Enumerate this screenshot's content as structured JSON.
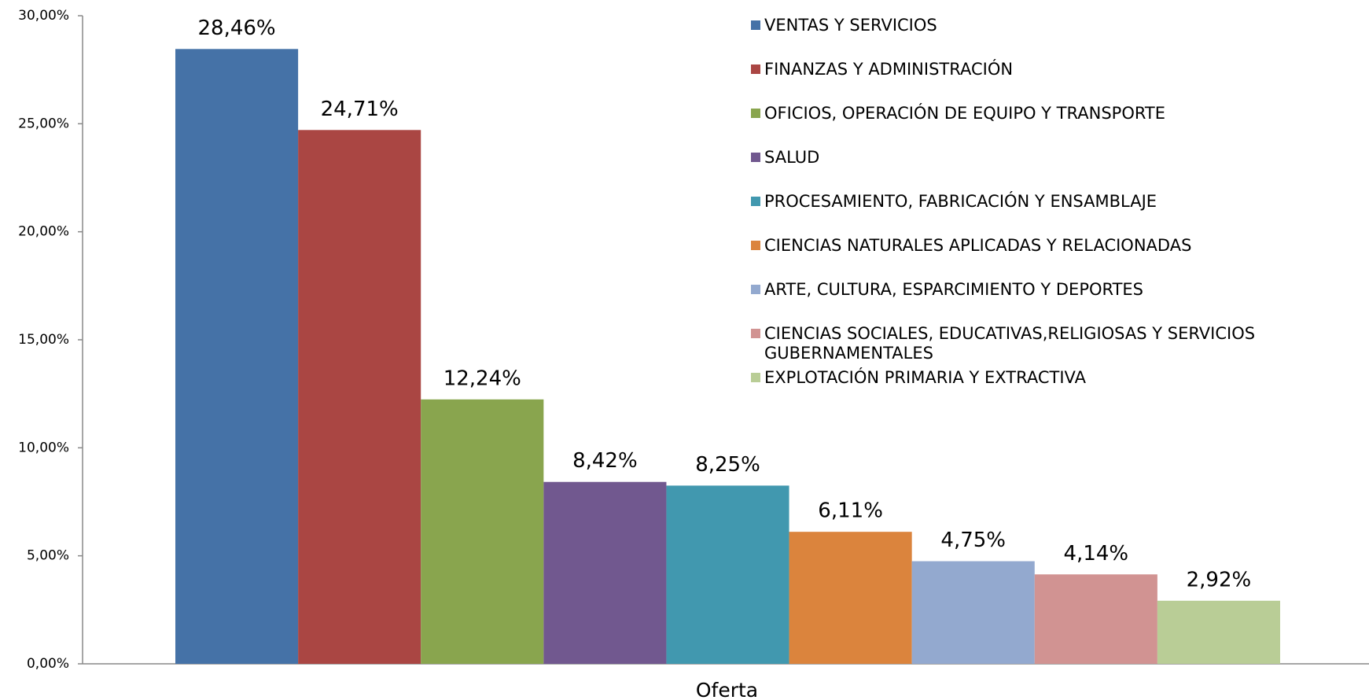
{
  "chart_data": {
    "type": "bar",
    "categories": [
      "Oferta"
    ],
    "series": [
      {
        "name": "VENTAS Y SERVICIOS",
        "color": "#4572a7",
        "values": [
          28.46
        ],
        "value_labels": [
          "28,46%"
        ]
      },
      {
        "name": "FINANZAS Y ADMINISTRACIÓN",
        "color": "#aa4643",
        "values": [
          24.71
        ],
        "value_labels": [
          "24,71%"
        ]
      },
      {
        "name": "OFICIOS, OPERACIÓN DE EQUIPO Y TRANSPORTE",
        "color": "#89a54e",
        "values": [
          12.24
        ],
        "value_labels": [
          "12,24%"
        ]
      },
      {
        "name": "SALUD",
        "color": "#71588f",
        "values": [
          8.42
        ],
        "value_labels": [
          "8,42%"
        ]
      },
      {
        "name": "PROCESAMIENTO, FABRICACIÓN Y ENSAMBLAJE",
        "color": "#4198af",
        "values": [
          8.25
        ],
        "value_labels": [
          "8,25%"
        ]
      },
      {
        "name": "CIENCIAS NATURALES APLICADAS Y RELACIONADAS",
        "color": "#db843d",
        "values": [
          6.11
        ],
        "value_labels": [
          "6,11%"
        ]
      },
      {
        "name": "ARTE, CULTURA, ESPARCIMIENTO Y DEPORTES",
        "color": "#93a9cf",
        "values": [
          4.75
        ],
        "value_labels": [
          "4,75%"
        ]
      },
      {
        "name": "CIENCIAS SOCIALES, EDUCATIVAS,RELIGIOSAS Y SERVICIOS GUBERNAMENTALES",
        "color": "#d19392",
        "values": [
          4.14
        ],
        "value_labels": [
          "4,14%"
        ]
      },
      {
        "name": "EXPLOTACIÓN PRIMARIA Y EXTRACTIVA",
        "color": "#b9cd96",
        "values": [
          2.92
        ],
        "value_labels": [
          "2,92%"
        ]
      }
    ],
    "ylim": [
      0,
      30
    ],
    "yticks": [
      {
        "value": 0,
        "label": "0,00%"
      },
      {
        "value": 5,
        "label": "5,00%"
      },
      {
        "value": 10,
        "label": "10,00%"
      },
      {
        "value": 15,
        "label": "15,00%"
      },
      {
        "value": 20,
        "label": "20,00%"
      },
      {
        "value": 25,
        "label": "25,00%"
      },
      {
        "value": 30,
        "label": "30,00%"
      }
    ],
    "legend": "upper right"
  }
}
